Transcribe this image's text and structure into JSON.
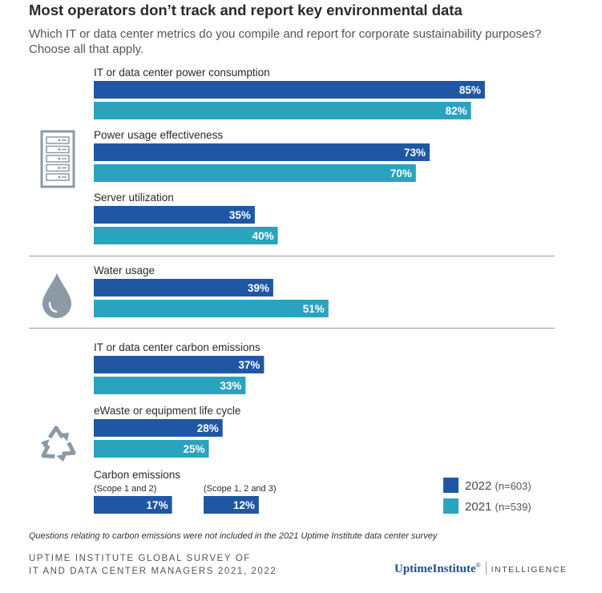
{
  "title": "Most operators don’t track and report key environmental data",
  "subtitle": {
    "line1": "Which IT or data center metrics do you compile and report for corporate sustainability purposes?",
    "line2": "Choose all that apply."
  },
  "chart_data": {
    "type": "bar",
    "orientation": "horizontal",
    "value_unit": "%",
    "xlim": [
      0,
      100
    ],
    "series": [
      {
        "name": "2022",
        "n": "(n=603)",
        "color": "#1f57a4"
      },
      {
        "name": "2021",
        "n": "(n=539)",
        "color": "#2aa3bf"
      }
    ],
    "groups": [
      {
        "icon": "server-rack-icon",
        "items": [
          {
            "label": "IT or data center power consumption",
            "values": [
              85,
              82
            ],
            "value_labels": [
              "85%",
              "82%"
            ]
          },
          {
            "label": "Power usage effectiveness",
            "values": [
              73,
              70
            ],
            "value_labels": [
              "73%",
              "70%"
            ]
          },
          {
            "label": "Server utilization",
            "values": [
              35,
              40
            ],
            "value_labels": [
              "35%",
              "40%"
            ]
          }
        ]
      },
      {
        "icon": "water-drop-icon",
        "items": [
          {
            "label": "Water usage",
            "values": [
              39,
              51
            ],
            "value_labels": [
              "39%",
              "51%"
            ]
          }
        ]
      },
      {
        "icon": "recycle-icon",
        "items": [
          {
            "label": "IT or data center carbon emissions",
            "values": [
              37,
              33
            ],
            "value_labels": [
              "37%",
              "33%"
            ]
          },
          {
            "label": "eWaste or equipment life cycle",
            "values": [
              28,
              25
            ],
            "value_labels": [
              "28%",
              "25%"
            ]
          }
        ]
      }
    ],
    "carbon_scopes": {
      "label": "Carbon emissions",
      "items": [
        {
          "sub_label": "(Scope 1 and 2)",
          "value": 17,
          "value_label": "17%"
        },
        {
          "sub_label": "(Scope 1, 2 and 3)",
          "value": 12,
          "value_label": "12%"
        }
      ]
    }
  },
  "footnote": "Questions relating to carbon emissions were not included in the 2021 Uptime Institute data center survey",
  "source": {
    "line1": "UPTIME INSTITUTE GLOBAL SURVEY OF",
    "line2": "IT AND DATA CENTER MANAGERS 2021, 2022"
  },
  "logo": {
    "name": "UptimeInstitute",
    "trademark": "®",
    "tagline": "INTELLIGENCE"
  }
}
